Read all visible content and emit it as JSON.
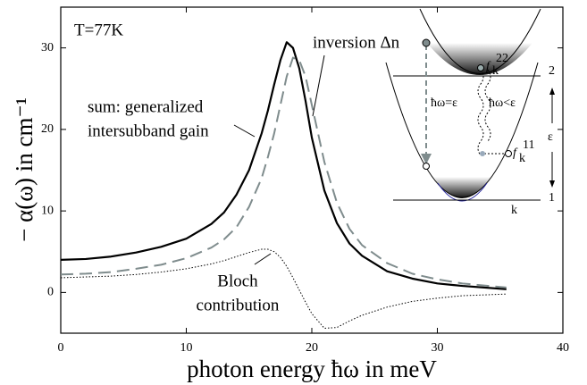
{
  "chart_data": {
    "type": "line",
    "xlabel": "photon energy ħω in meV",
    "ylabel": "− α(ω) in cm⁻¹",
    "x": [
      0,
      2,
      4,
      6,
      8,
      10,
      12,
      13,
      14,
      15,
      16,
      16.5,
      17,
      17.5,
      18,
      18.5,
      19,
      19.5,
      20,
      21,
      22,
      23,
      24,
      26,
      28,
      30,
      32,
      35.5
    ],
    "series": [
      {
        "color": "#000000",
        "style": "solid",
        "values": [
          4.0,
          4.1,
          4.4,
          4.9,
          5.6,
          6.6,
          8.4,
          9.8,
          12,
          15,
          19.5,
          22.3,
          25.5,
          28.5,
          30.7,
          30,
          27.5,
          23.5,
          19,
          12.5,
          8.5,
          6,
          4.5,
          2.6,
          1.7,
          1.1,
          0.8,
          0.4
        ]
      },
      {
        "color": "#7f8c8d",
        "style": "dashed",
        "values": [
          2.2,
          2.3,
          2.5,
          2.9,
          3.4,
          4.2,
          5.5,
          6.5,
          8,
          10.5,
          14,
          16.6,
          19.5,
          23,
          26.5,
          28.8,
          28.5,
          26.5,
          23,
          16,
          11,
          7.8,
          5.8,
          3.6,
          2.3,
          1.6,
          1.1,
          0.6
        ]
      },
      {
        "color": "#000000",
        "style": "dotted",
        "values": [
          1.8,
          1.9,
          2.0,
          2.2,
          2.5,
          2.9,
          3.5,
          3.9,
          4.4,
          4.9,
          5.3,
          5.3,
          5,
          4.3,
          3.2,
          1.8,
          0.3,
          -1.2,
          -2.6,
          -4.4,
          -4.3,
          -3.5,
          -2.8,
          -1.8,
          -1.1,
          -0.7,
          -0.4,
          -0.2
        ]
      }
    ],
    "xlim": [
      0,
      40
    ],
    "xticks": [
      0,
      10,
      20,
      30,
      40
    ],
    "ylim": [
      -5,
      35
    ],
    "yticks": [
      0,
      10,
      20,
      30
    ],
    "annotations": [
      "T=77K",
      "inversion Δn",
      "sum: generalized",
      "intersubband gain",
      "Bloch",
      "contribution"
    ],
    "inset_labels": [
      "ħω=ε",
      "ħω<ε",
      "2",
      "1",
      "ε",
      "k",
      "f",
      "k",
      "22",
      "f",
      "k",
      "11"
    ]
  }
}
